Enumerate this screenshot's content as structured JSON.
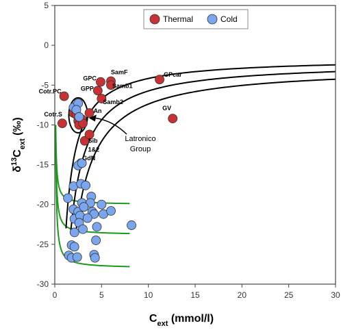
{
  "chart_data": {
    "type": "scatter",
    "xlim": [
      0,
      30
    ],
    "ylim": [
      -30,
      5
    ],
    "xticks": [
      0,
      5,
      10,
      15,
      20,
      25,
      30
    ],
    "yticks": [
      5,
      0,
      -5,
      -10,
      -15,
      -20,
      -25,
      -30
    ],
    "xlabel_main": "C",
    "xlabel_sub": "ext",
    "xlabel_unit": " (mmol/l)",
    "ylabel_main": "δ",
    "ylabel_sup": "13",
    "ylabel_c": "C",
    "ylabel_sub": "ext",
    "ylabel_unit": " (‰)",
    "grid": false,
    "legend": {
      "placement": "top-center"
    },
    "series": [
      {
        "name": "Thermal",
        "color": "#c83232",
        "points": [
          [
            1.0,
            -6.4
          ],
          [
            0.8,
            -9.8
          ],
          [
            2.0,
            -8.5
          ],
          [
            2.3,
            -8.7
          ],
          [
            2.5,
            -9.5
          ],
          [
            2.6,
            -10.0
          ],
          [
            2.9,
            -9.3
          ],
          [
            3.0,
            -9.8
          ],
          [
            3.7,
            -8.5
          ],
          [
            3.2,
            -12.0
          ],
          [
            3.7,
            -11.2
          ],
          [
            2.8,
            -14.8
          ],
          [
            4.6,
            -5.7
          ],
          [
            4.9,
            -4.6
          ],
          [
            6.0,
            -4.5
          ],
          [
            6.0,
            -5.0
          ],
          [
            5.0,
            -6.7
          ],
          [
            11.2,
            -4.3
          ],
          [
            12.6,
            -9.2
          ]
        ]
      },
      {
        "name": "Cold",
        "color": "#7aa6f0",
        "points": [
          [
            2.0,
            -7.8
          ],
          [
            2.5,
            -7.3
          ],
          [
            2.3,
            -8.1
          ],
          [
            2.6,
            -9.0
          ],
          [
            2.5,
            -15.1
          ],
          [
            2.9,
            -14.8
          ],
          [
            2.0,
            -17.7
          ],
          [
            2.8,
            -17.4
          ],
          [
            3.3,
            -17.6
          ],
          [
            1.4,
            -19.2
          ],
          [
            2.9,
            -19.8
          ],
          [
            3.9,
            -19.0
          ],
          [
            3.8,
            -19.8
          ],
          [
            5.0,
            -20.0
          ],
          [
            2.0,
            -20.6
          ],
          [
            2.5,
            -20.9
          ],
          [
            3.1,
            -20.3
          ],
          [
            4.0,
            -20.9
          ],
          [
            4.2,
            -21.2
          ],
          [
            5.2,
            -21.2
          ],
          [
            6.0,
            -20.8
          ],
          [
            2.1,
            -21.8
          ],
          [
            2.7,
            -21.4
          ],
          [
            3.5,
            -21.7
          ],
          [
            4.5,
            -22.8
          ],
          [
            8.2,
            -22.6
          ],
          [
            2.1,
            -23.5
          ],
          [
            2.6,
            -22.3
          ],
          [
            3.0,
            -23.1
          ],
          [
            4.4,
            -24.5
          ],
          [
            1.8,
            -25.1
          ],
          [
            2.1,
            -25.3
          ],
          [
            1.5,
            -26.4
          ],
          [
            1.8,
            -26.7
          ],
          [
            2.4,
            -26.6
          ],
          [
            4.2,
            -26.3
          ],
          [
            4.3,
            -26.7
          ]
        ]
      }
    ],
    "point_labels": [
      {
        "text": "Cotr.PC",
        "x": 1.0,
        "y": -6.4,
        "anchor": "end",
        "dx": -4,
        "dy": -4
      },
      {
        "text": "GPC",
        "x": 4.6,
        "y": -5.7,
        "anchor": "end",
        "dx": -2,
        "dy": -15
      },
      {
        "text": "SamF",
        "x": 6.0,
        "y": -4.5,
        "anchor": "start",
        "dx": 0,
        "dy": -10
      },
      {
        "text": "GPP",
        "x": 4.6,
        "y": -5.7,
        "anchor": "end",
        "dx": -6,
        "dy": 0
      },
      {
        "text": "Samb1",
        "x": 6.0,
        "y": -5.0,
        "anchor": "start",
        "dx": 2,
        "dy": 4
      },
      {
        "text": "Samb2",
        "x": 5.0,
        "y": -6.7,
        "anchor": "start",
        "dx": 2,
        "dy": 8
      },
      {
        "text": "Cotr.S",
        "x": 0.8,
        "y": -9.8,
        "anchor": "end",
        "dx": 0,
        "dy": -10
      },
      {
        "text": "An",
        "x": 3.7,
        "y": -8.5,
        "anchor": "start",
        "dx": 6,
        "dy": 0
      },
      {
        "text": "GPcar",
        "x": 11.2,
        "y": -4.3,
        "anchor": "start",
        "dx": 6,
        "dy": -4
      },
      {
        "text": "GV",
        "x": 12.6,
        "y": -9.2,
        "anchor": "end",
        "dx": -2,
        "dy": -12
      },
      {
        "text": "Sib",
        "x": 3.7,
        "y": -11.2,
        "anchor": "start",
        "dx": -2,
        "dy": 12
      },
      {
        "text": "1&2",
        "x": 3.7,
        "y": -11.2,
        "anchor": "start",
        "dx": -2,
        "dy": 25
      },
      {
        "text": "GdN",
        "x": 2.8,
        "y": -14.8,
        "anchor": "start",
        "dx": 2,
        "dy": -4
      }
    ],
    "annotation": {
      "line1": "Latronico",
      "line2": "Group"
    },
    "black_curves": [
      {
        "asymptote": -1.6,
        "start_x": 1.2,
        "start_y": -23.0,
        "end_x": 30
      },
      {
        "asymptote": -2.1,
        "start_x": 1.7,
        "start_y": -23.5,
        "end_x": 30
      },
      {
        "asymptote": -2.7,
        "start_x": 2.2,
        "start_y": -24.0,
        "end_x": 30
      }
    ],
    "green_curves": [
      {
        "asymptote": -20.0,
        "start_x": 0.1,
        "start_y": -10.0,
        "end_x": 8
      },
      {
        "asymptote": -23.8,
        "start_x": 0.1,
        "start_y": -11.0,
        "end_x": 8
      },
      {
        "asymptote": -28.0,
        "start_x": 0.1,
        "start_y": -12.0,
        "end_x": 8
      }
    ],
    "ellipse": {
      "cx": 2.5,
      "cy": -8.8,
      "rx": 1.0,
      "ry": 2.2
    },
    "curve_colors": {
      "black": "#000000",
      "green": "#1a9a1a"
    }
  }
}
